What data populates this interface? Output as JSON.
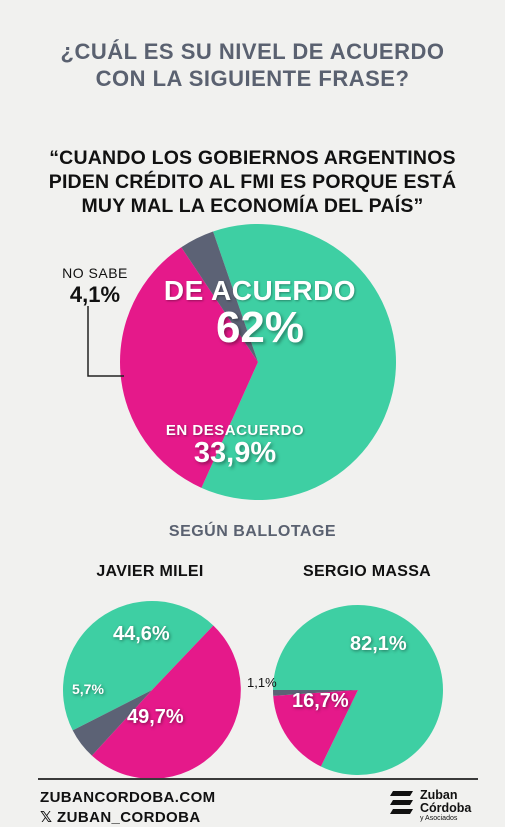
{
  "header": {
    "question_line1": "¿CUÁL ES SU NIVEL DE ACUERDO",
    "question_line2": "CON LA SIGUIENTE FRASE?",
    "quote_line1": "“CUANDO LOS GOBIERNOS ARGENTINOS",
    "quote_line2": "PIDEN CRÉDITO AL FMI ES PORQUE ESTÁ",
    "quote_line3": "MUY MAL LA ECONOMÍA DEL PAÍS”"
  },
  "section": {
    "ballotage_label": "SEGÚN BALLOTAGE"
  },
  "chart_data": [
    {
      "type": "pie",
      "categories": [
        "DE ACUERDO",
        "EN DESACUERDO",
        "NO SABE"
      ],
      "values": [
        62,
        33.9,
        4.1
      ],
      "value_labels": [
        "62%",
        "33,9%",
        "4,1%"
      ],
      "colors": [
        "#3ecfa3",
        "#e5198a",
        "#5c6275"
      ]
    },
    {
      "type": "pie",
      "title": "JAVIER MILEI",
      "values": [
        44.6,
        49.7,
        5.7
      ],
      "value_labels": [
        "44,6%",
        "49,7%",
        "5,7%"
      ],
      "colors": [
        "#3ecfa3",
        "#e5198a",
        "#5c6275"
      ]
    },
    {
      "type": "pie",
      "title": "SERGIO MASSA",
      "values": [
        82.1,
        16.7,
        1.1
      ],
      "value_labels": [
        "82,1%",
        "16,7%",
        "1,1%"
      ],
      "colors": [
        "#3ecfa3",
        "#e5198a",
        "#5c6275"
      ]
    }
  ],
  "footer": {
    "website": "ZUBANCORDOBA.COM",
    "social": "𝕏 ZUBAN_CORDOBA",
    "logo_line1": "Zuban",
    "logo_line2": "Córdoba",
    "logo_line3": "y Asociados"
  }
}
